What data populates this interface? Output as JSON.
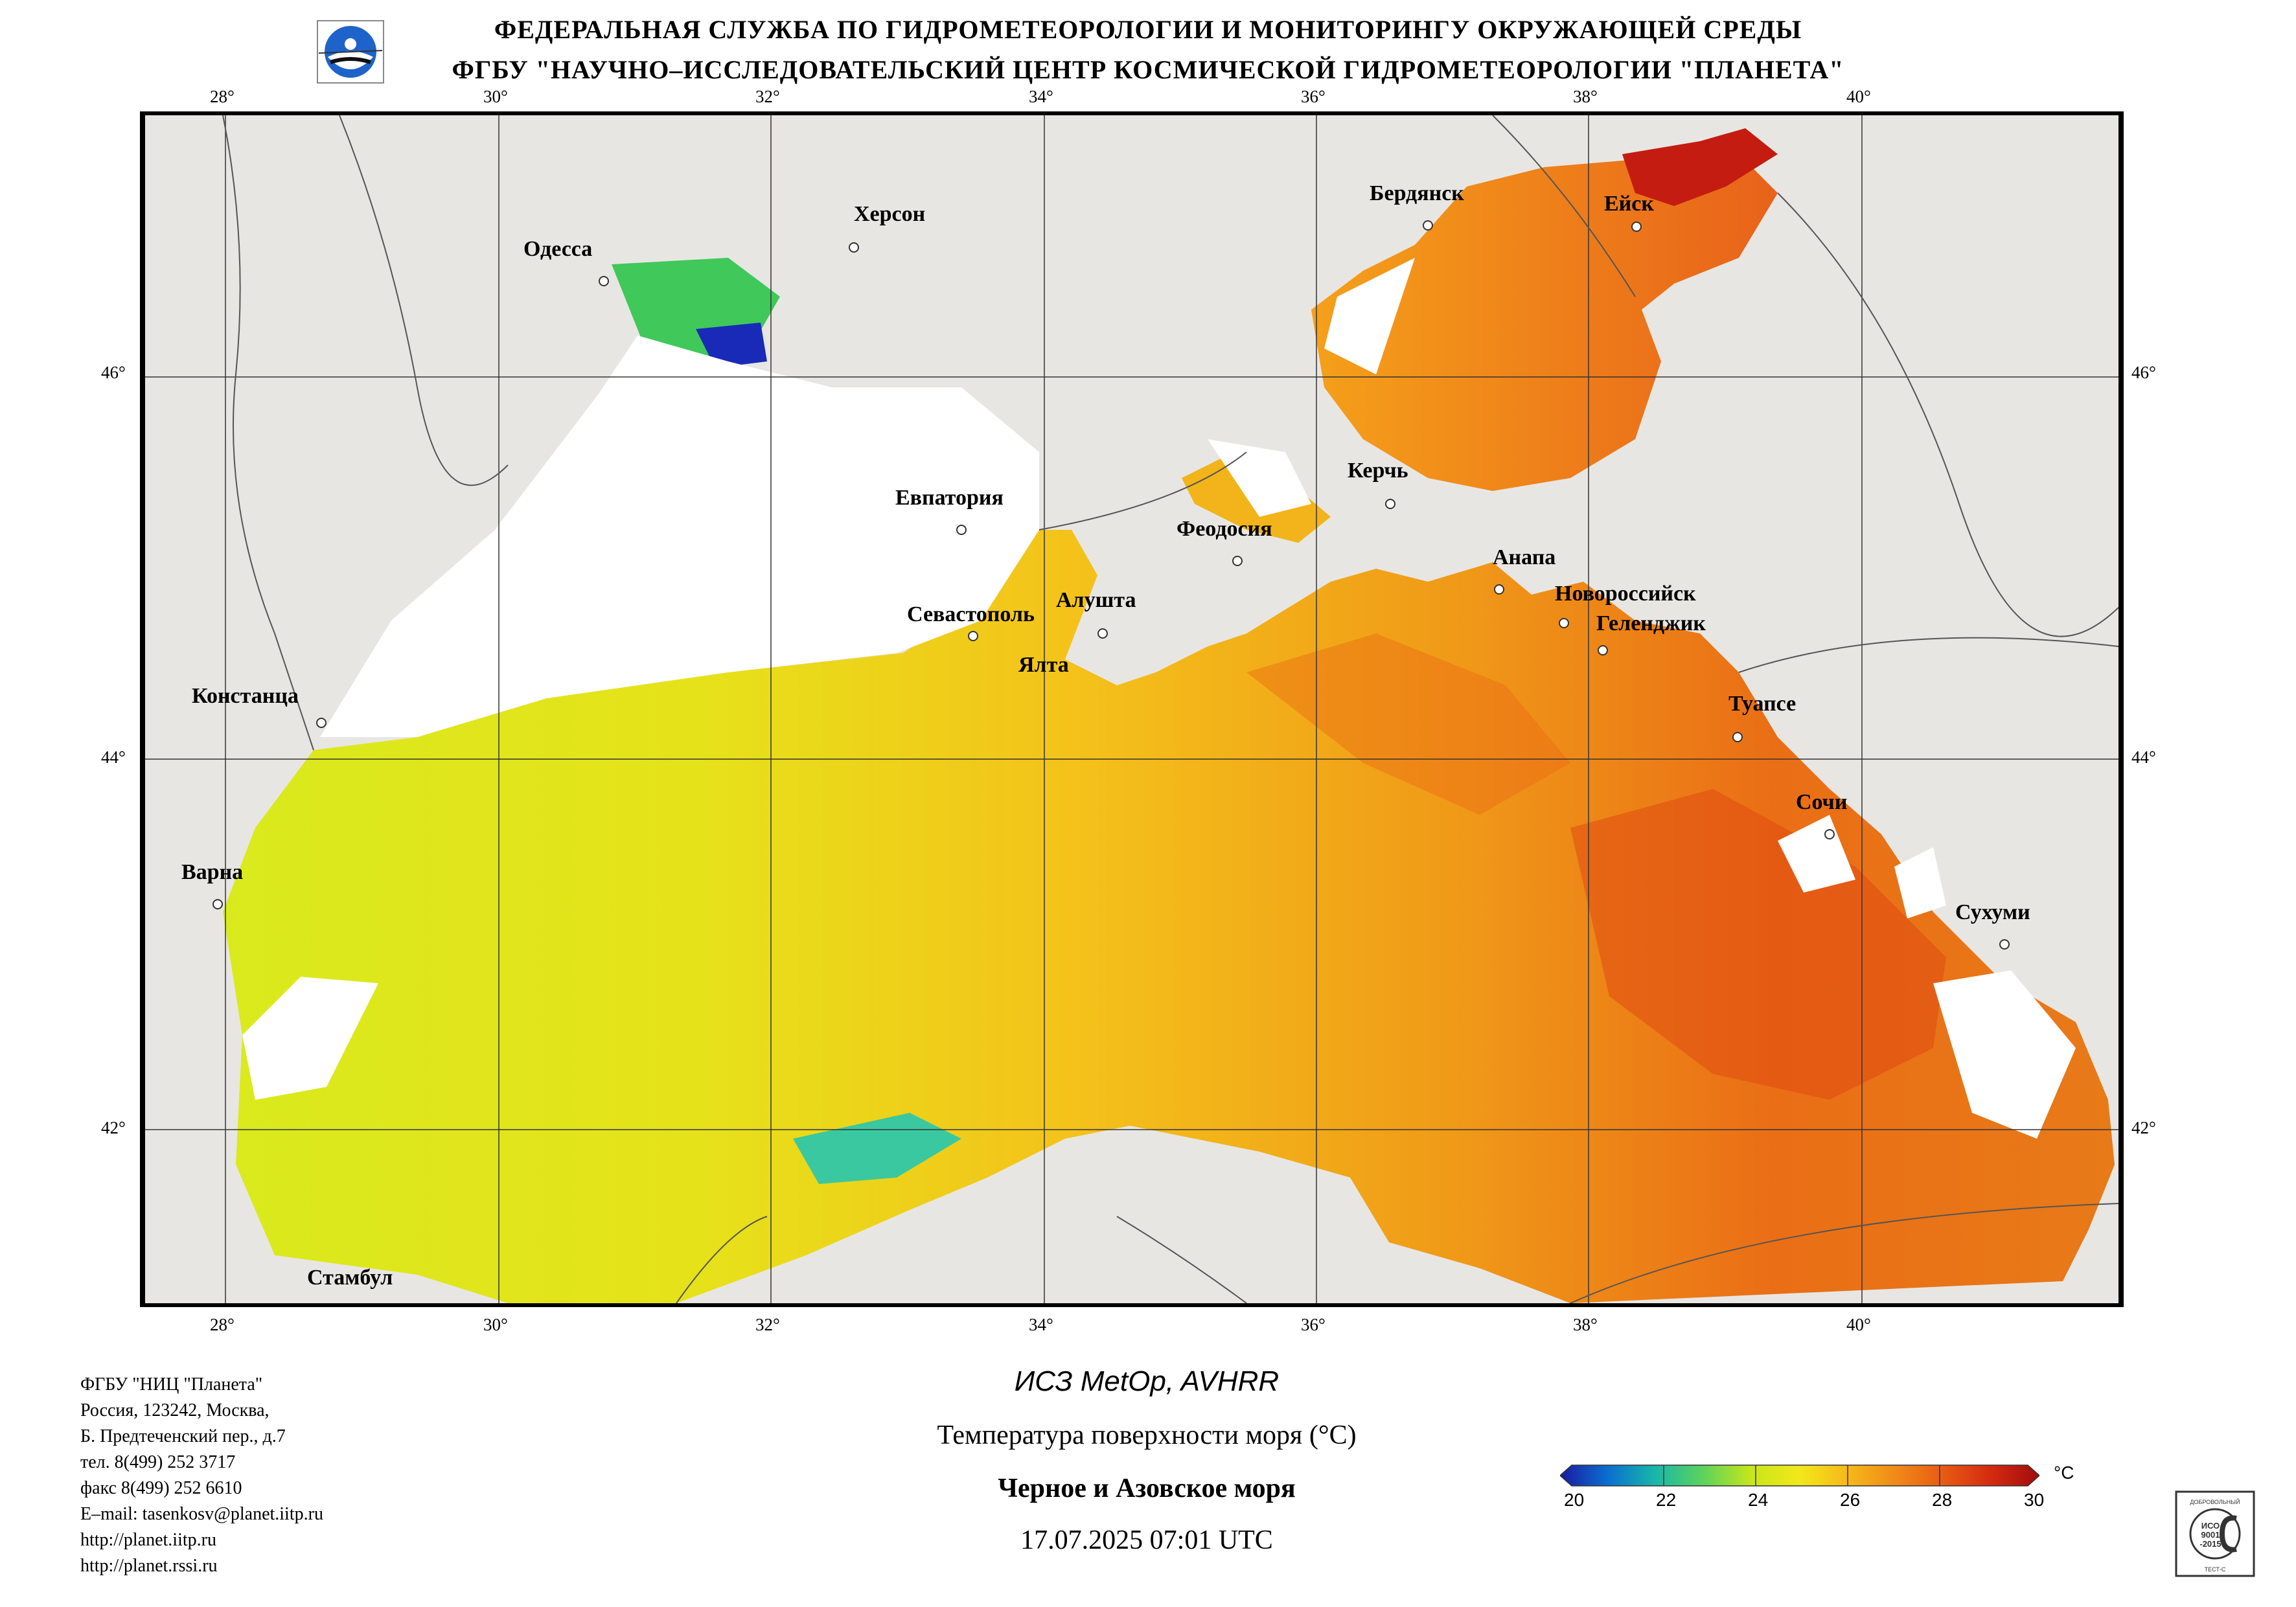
{
  "header": {
    "line1": "ФЕДЕРАЛЬНАЯ СЛУЖБА ПО ГИДРОМЕТЕОРОЛОГИИ И МОНИТОРИНГУ ОКРУЖАЮЩЕЙ СРЕДЫ",
    "line2": "ФГБУ \"НАУЧНО–ИССЛЕДОВАТЕЛЬСКИЙ ЦЕНТР КОСМИЧЕСКОЙ ГИДРОМЕТЕОРОЛОГИИ \"ПЛАНЕТА\""
  },
  "map": {
    "lon_labels": [
      "28°",
      "30°",
      "32°",
      "34°",
      "36°",
      "38°",
      "40°"
    ],
    "lat_labels": [
      "46°",
      "44°",
      "42°"
    ],
    "cities": [
      {
        "name": "Одесса"
      },
      {
        "name": "Херсон"
      },
      {
        "name": "Бердянск"
      },
      {
        "name": "Ейск"
      },
      {
        "name": "Керчь"
      },
      {
        "name": "Евпатория"
      },
      {
        "name": "Феодосия"
      },
      {
        "name": "Анапа"
      },
      {
        "name": "Новороссийск"
      },
      {
        "name": "Геленджик"
      },
      {
        "name": "Севастополь"
      },
      {
        "name": "Алушта"
      },
      {
        "name": "Ялта"
      },
      {
        "name": "Констанца"
      },
      {
        "name": "Туапсе"
      },
      {
        "name": "Сочи"
      },
      {
        "name": "Варна"
      },
      {
        "name": "Сухуми"
      },
      {
        "name": "Стамбул"
      }
    ],
    "colors": {
      "land": "#e8e6e3",
      "cloud": "#ffffff",
      "border": "#555555"
    }
  },
  "footer": {
    "contacts": [
      "ФГБУ \"НИЦ \"Планета\"",
      "Россия, 123242, Москва,",
      "Б. Предтеченский пер., д.7",
      "тел. 8(499) 252 3717",
      "факс 8(499) 252 6610",
      "E–mail: tasenkosv@planet.iitp.ru",
      "http://planet.iitp.ru",
      "http://planet.rssi.ru"
    ],
    "satellite": "ИСЗ MetOp, AVHRR",
    "product": "Температура поверхности моря (°C)",
    "region": "Черное и Азовское моря",
    "datetime": "17.07.2025 07:01 UTC"
  },
  "colorbar": {
    "ticks": [
      "20",
      "22",
      "24",
      "26",
      "28",
      "30"
    ],
    "unit": "°C",
    "min": 20,
    "max": 30,
    "colors": [
      "#1a1aa0",
      "#0a6fd0",
      "#19b8a8",
      "#5ed35a",
      "#c8e61a",
      "#f2e81a",
      "#f6b81a",
      "#f08a18",
      "#e85a14",
      "#d42a10",
      "#a00c0c"
    ]
  },
  "stamp": {
    "text_top": "ДОБРОВОЛЬНЫЙ",
    "text_mid1": "ИСО",
    "text_mid2": "9001",
    "text_mid3": "-2015",
    "text_bottom": "ТЕСТ-С"
  }
}
